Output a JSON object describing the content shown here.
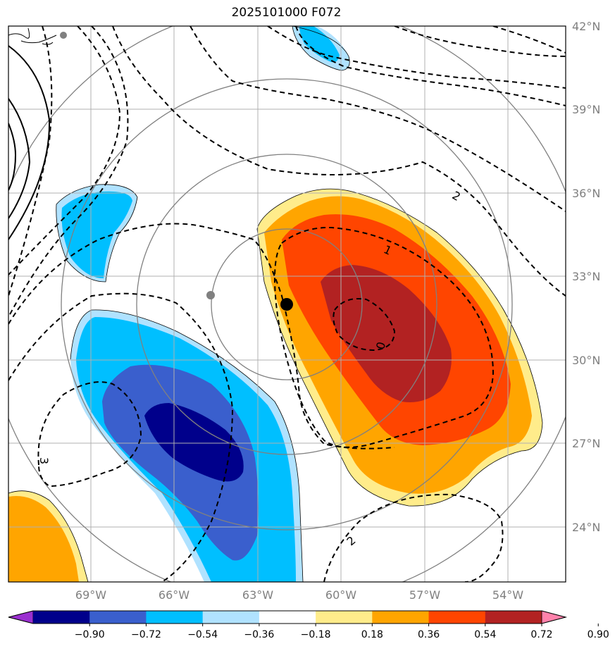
{
  "title": "2025101000 F072",
  "map": {
    "lat_labels": [
      "42°N",
      "39°N",
      "36°N",
      "33°N",
      "30°N",
      "27°N",
      "24°N"
    ],
    "lon_labels": [
      "69°W",
      "66°W",
      "63°W",
      "60°W",
      "57°W",
      "54°W"
    ],
    "contour_labels": [
      "2",
      "1",
      "0",
      "3",
      "2"
    ],
    "grid_color": "#b0b0b0",
    "range_ring_color": "#808080",
    "storm_center_color": "#000000",
    "reference_point_color": "#808080"
  },
  "colorbar": {
    "levels": [
      "−0.90",
      "−0.72",
      "−0.54",
      "−0.36",
      "−0.18",
      "0.18",
      "0.36",
      "0.54",
      "0.72",
      "0.90"
    ],
    "colors": [
      "#9b30d0",
      "#00008b",
      "#3a5fcd",
      "#00bfff",
      "#b0e2ff",
      "#ffffff",
      "#ffec8b",
      "#ffa500",
      "#ff4500",
      "#b22222",
      "#ff82ab"
    ]
  }
}
